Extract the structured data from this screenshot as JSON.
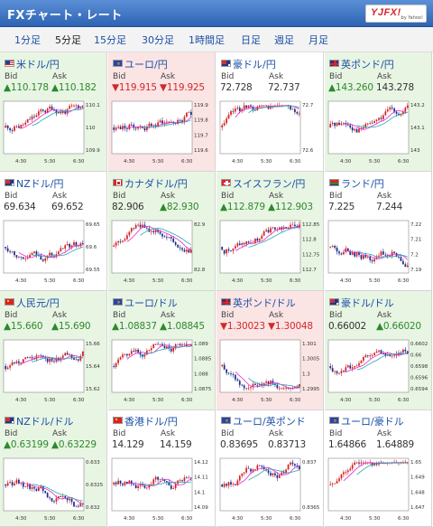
{
  "header": {
    "title": "FXチャート・レート",
    "logo_brand": "YJFX!",
    "logo_sub": "by Yahoo!"
  },
  "tabs": [
    {
      "label": "1分足",
      "active": false
    },
    {
      "label": "5分足",
      "active": true
    },
    {
      "label": "15分足",
      "active": false
    },
    {
      "label": "30分足",
      "active": false
    },
    {
      "label": "1時間足",
      "active": false
    },
    {
      "label": "日足",
      "active": false
    },
    {
      "label": "週足",
      "active": false
    },
    {
      "label": "月足",
      "active": false
    }
  ],
  "labels": {
    "bid": "Bid",
    "ask": "Ask"
  },
  "colors": {
    "up": "#2c8a2c",
    "down": "#d02a2a",
    "up_bg": "#e8f5e3",
    "down_bg": "#fbe4e4",
    "candle_up": "#d62020",
    "candle_down": "#1c2b8a",
    "ma_pink": "#e22ad2",
    "ma_teal": "#2aa8a8"
  },
  "pairs": [
    {
      "name": "米ドル/円",
      "flag": "us",
      "direction": "up",
      "bid": "▲110.178",
      "ask": "▲110.182",
      "chart": {
        "y_ticks": [
          "110.1",
          "110",
          "109.9"
        ],
        "x_ticks": [
          "4:30",
          "5:30",
          "6:30"
        ],
        "trend": "up",
        "seed": 11
      }
    },
    {
      "name": "ユーロ/円",
      "flag": "eu",
      "direction": "down",
      "bid": "▼119.915",
      "ask": "▼119.925",
      "chart": {
        "y_ticks": [
          "119.9",
          "119.8",
          "119.7",
          "119.6"
        ],
        "x_ticks": [
          "4:30",
          "5:30",
          "6:30"
        ],
        "trend": "up",
        "seed": 23
      }
    },
    {
      "name": "豪ドル/円",
      "flag": "au",
      "direction": "neutral",
      "bid": "72.728",
      "ask": "72.737",
      "chart": {
        "y_ticks": [
          "72.7",
          "72.6"
        ],
        "x_ticks": [
          "4:30",
          "5:30",
          "6:30"
        ],
        "trend": "up",
        "seed": 37
      }
    },
    {
      "name": "英ポンド/円",
      "flag": "uk",
      "direction": "up",
      "bid": "▲143.260",
      "ask": "143.278",
      "chart": {
        "y_ticks": [
          "143.2",
          "143.1",
          "143"
        ],
        "x_ticks": [
          "4:30",
          "5:30",
          "6:30"
        ],
        "trend": "up",
        "seed": 41
      }
    },
    {
      "name": "NZドル/円",
      "flag": "nz",
      "direction": "neutral",
      "bid": "69.634",
      "ask": "69.652",
      "chart": {
        "y_ticks": [
          "69.65",
          "69.6",
          "69.55"
        ],
        "x_ticks": [
          "4:30",
          "5:30",
          "6:30"
        ],
        "trend": "flat",
        "seed": 53
      }
    },
    {
      "name": "カナダドル/円",
      "flag": "ca",
      "direction": "up",
      "bid": "82.906",
      "ask": "▲82.930",
      "chart": {
        "y_ticks": [
          "82.9",
          "82.8"
        ],
        "x_ticks": [
          "4:30",
          "5:30",
          "6:30"
        ],
        "trend": "flat",
        "seed": 61
      }
    },
    {
      "name": "スイスフラン/円",
      "flag": "ch",
      "direction": "up",
      "bid": "▲112.879",
      "ask": "▲112.903",
      "chart": {
        "y_ticks": [
          "112.85",
          "112.8",
          "112.75",
          "112.7"
        ],
        "x_ticks": [
          "4:30",
          "5:30",
          "6:30"
        ],
        "trend": "up",
        "seed": 71
      }
    },
    {
      "name": "ランド/円",
      "flag": "za",
      "direction": "neutral",
      "bid": "7.225",
      "ask": "7.244",
      "chart": {
        "y_ticks": [
          "7.22",
          "7.21",
          "7.2",
          "7.19"
        ],
        "x_ticks": [
          "4:30",
          "5:30",
          "6:30"
        ],
        "trend": "flat",
        "seed": 83
      }
    },
    {
      "name": "人民元/円",
      "flag": "cn",
      "direction": "up",
      "bid": "▲15.660",
      "ask": "▲15.690",
      "chart": {
        "y_ticks": [
          "15.66",
          "15.64",
          "15.62"
        ],
        "x_ticks": [
          "4:30",
          "5:30",
          "6:30"
        ],
        "trend": "up",
        "seed": 97
      }
    },
    {
      "name": "ユーロ/ドル",
      "flag": "eu",
      "direction": "up",
      "bid": "▲1.08837",
      "ask": "▲1.08845",
      "chart": {
        "y_ticks": [
          "1.089",
          "1.0885",
          "1.088",
          "1.0875"
        ],
        "x_ticks": [
          "4:30",
          "5:30",
          "6:30"
        ],
        "trend": "up",
        "seed": 103
      }
    },
    {
      "name": "英ポンド/ドル",
      "flag": "uk",
      "direction": "down",
      "bid": "▼1.30023",
      "ask": "▼1.30048",
      "chart": {
        "y_ticks": [
          "1.301",
          "1.3005",
          "1.3",
          "1.2995"
        ],
        "x_ticks": [
          "4:30",
          "5:30",
          "6:30"
        ],
        "trend": "down",
        "seed": 113
      }
    },
    {
      "name": "豪ドル/ドル",
      "flag": "au",
      "direction": "up",
      "bid": "0.66002",
      "ask": "▲0.66020",
      "chart": {
        "y_ticks": [
          "0.6602",
          "0.66",
          "0.6598",
          "0.6596",
          "0.6594"
        ],
        "x_ticks": [
          "4:30",
          "5:30",
          "6:30"
        ],
        "trend": "flat",
        "seed": 127
      }
    },
    {
      "name": "NZドル/ドル",
      "flag": "nz",
      "direction": "up",
      "bid": "▲0.63199",
      "ask": "▲0.63229",
      "chart": {
        "y_ticks": [
          "0.633",
          "0.6325",
          "0.632"
        ],
        "x_ticks": [
          "4:30",
          "5:30",
          "6:30"
        ],
        "trend": "down",
        "seed": 131
      }
    },
    {
      "name": "香港ドル/円",
      "flag": "hk",
      "direction": "neutral",
      "bid": "14.129",
      "ask": "14.159",
      "chart": {
        "y_ticks": [
          "14.12",
          "14.11",
          "14.1",
          "14.09"
        ],
        "x_ticks": [
          "4:30",
          "5:30",
          "6:30"
        ],
        "trend": "up",
        "seed": 137
      }
    },
    {
      "name": "ユーロ/英ポンド",
      "flag": "eu",
      "direction": "neutral",
      "bid": "0.83695",
      "ask": "0.83713",
      "chart": {
        "y_ticks": [
          "0.837",
          "0.8365"
        ],
        "x_ticks": [
          "4:30",
          "5:30",
          "6:30"
        ],
        "trend": "up",
        "seed": 149
      }
    },
    {
      "name": "ユーロ/豪ドル",
      "flag": "eu",
      "direction": "neutral",
      "bid": "1.64866",
      "ask": "1.64889",
      "chart": {
        "y_ticks": [
          "1.65",
          "1.649",
          "1.648",
          "1.647"
        ],
        "x_ticks": [
          "4:30",
          "5:30",
          "6:30"
        ],
        "trend": "up",
        "seed": 157
      }
    }
  ]
}
